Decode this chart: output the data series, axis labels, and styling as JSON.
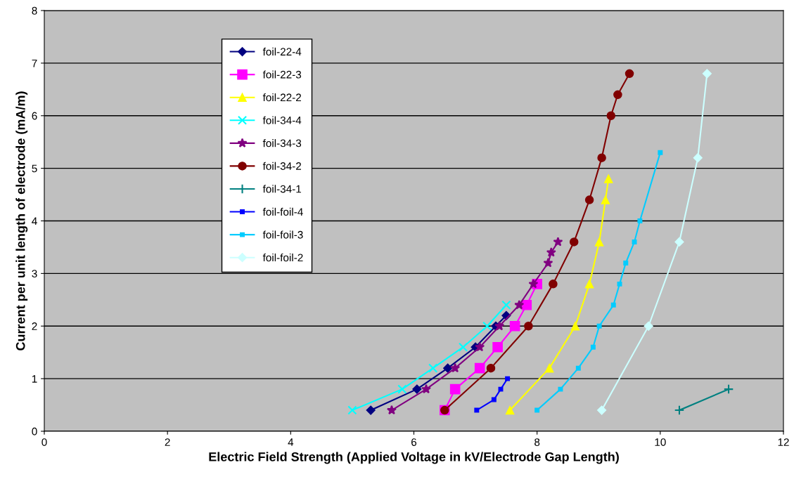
{
  "chart_data": {
    "type": "line",
    "xlabel": "Electric Field Strength (Applied Voltage in kV/Electrode Gap Length)",
    "ylabel": "Current per unit length of electrode (mA/m)",
    "xlim": [
      0,
      12
    ],
    "xticks": [
      0,
      2,
      4,
      6,
      8,
      10,
      12
    ],
    "ylim": [
      0,
      8
    ],
    "yticks": [
      0,
      1,
      2,
      3,
      4,
      5,
      6,
      7,
      8
    ],
    "grid": "y",
    "legend": "top left",
    "series": [
      {
        "name": "foil-22-4",
        "color": "#000080",
        "marker": "diamond",
        "x": [
          5.3,
          6.05,
          6.55,
          7.0,
          7.33,
          7.5
        ],
        "values": [
          0.4,
          0.8,
          1.2,
          1.6,
          2.0,
          2.2
        ]
      },
      {
        "name": "foil-22-3",
        "color": "#ff00ff",
        "marker": "square",
        "x": [
          6.5,
          6.67,
          7.07,
          7.36,
          7.64,
          7.83,
          8.0
        ],
        "values": [
          0.4,
          0.8,
          1.2,
          1.6,
          2.0,
          2.4,
          2.8
        ]
      },
      {
        "name": "foil-22-2",
        "color": "#ffff00",
        "marker": "triangle",
        "x": [
          7.56,
          8.2,
          8.62,
          8.85,
          9.01,
          9.11,
          9.16
        ],
        "values": [
          0.4,
          1.2,
          2.0,
          2.8,
          3.6,
          4.4,
          4.8
        ]
      },
      {
        "name": "foil-34-4",
        "color": "#00ffff",
        "marker": "cross",
        "x": [
          5.0,
          5.81,
          6.31,
          6.8,
          7.19,
          7.5
        ],
        "values": [
          0.4,
          0.8,
          1.2,
          1.6,
          2.0,
          2.4
        ]
      },
      {
        "name": "foil-34-3",
        "color": "#800080",
        "marker": "star",
        "x": [
          5.64,
          6.2,
          6.67,
          7.07,
          7.39,
          7.71,
          7.94,
          8.18,
          8.23,
          8.34
        ],
        "values": [
          0.4,
          0.8,
          1.2,
          1.6,
          2.0,
          2.4,
          2.8,
          3.2,
          3.4,
          3.6
        ]
      },
      {
        "name": "foil-34-2",
        "color": "#800000",
        "marker": "circle",
        "x": [
          6.5,
          7.25,
          7.86,
          8.26,
          8.6,
          8.85,
          9.05,
          9.2,
          9.31,
          9.5
        ],
        "values": [
          0.4,
          1.2,
          2.0,
          2.8,
          3.6,
          4.4,
          5.2,
          6.0,
          6.4,
          6.8
        ]
      },
      {
        "name": "foil-34-1",
        "color": "#008080",
        "marker": "plus",
        "x": [
          10.31,
          11.11
        ],
        "values": [
          0.4,
          0.8
        ]
      },
      {
        "name": "foil-foil-4",
        "color": "#0000ff",
        "marker": "square",
        "x": [
          7.02,
          7.3,
          7.41,
          7.52
        ],
        "values": [
          0.4,
          0.6,
          0.8,
          1.0
        ]
      },
      {
        "name": "foil-foil-3",
        "color": "#00ccff",
        "marker": "square",
        "x": [
          8.0,
          8.38,
          8.67,
          8.91,
          9.01,
          9.24,
          9.34,
          9.44,
          9.58,
          9.67,
          10.0
        ],
        "values": [
          0.4,
          0.8,
          1.2,
          1.6,
          2.0,
          2.4,
          2.8,
          3.2,
          3.6,
          4.0,
          5.3
        ]
      },
      {
        "name": "foil-foil-2",
        "color": "#ccffff",
        "marker": "diamond",
        "x": [
          9.05,
          9.81,
          10.31,
          10.61,
          10.76
        ],
        "values": [
          0.4,
          2.0,
          3.6,
          5.2,
          6.8
        ]
      }
    ]
  }
}
